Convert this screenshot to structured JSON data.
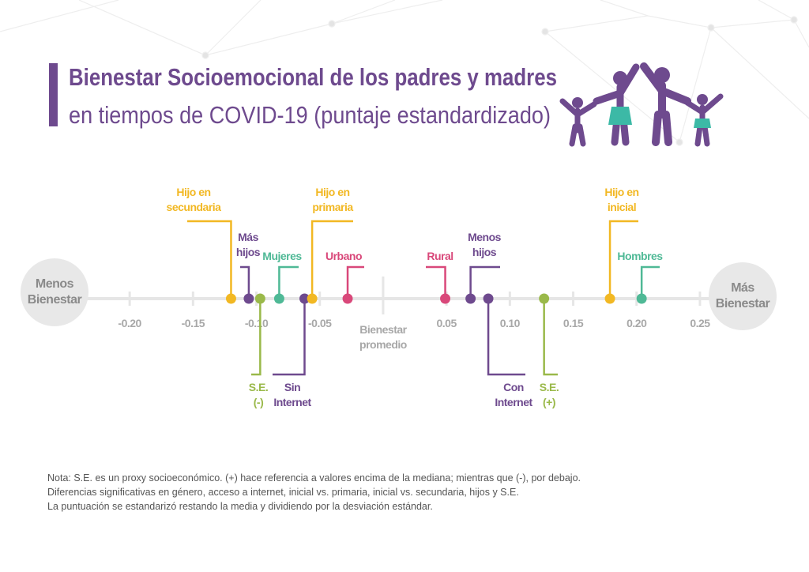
{
  "chart_data": {
    "type": "dotline",
    "title": "Bienestar Socioemocional de los padres y madres",
    "subtitle": "en tiempos de COVID-19 (puntaje estandardizado)",
    "left_label": "Menos Bienestar",
    "right_label": "Más Bienestar",
    "xlim": [
      -0.235,
      0.265
    ],
    "xticks": [
      {
        "value": -0.2,
        "label": "-0.20"
      },
      {
        "value": -0.15,
        "label": "-0.15"
      },
      {
        "value": -0.1,
        "label": "-0.10"
      },
      {
        "value": -0.05,
        "label": "-0.05"
      },
      {
        "value": 0,
        "label": "Bienestar promedio"
      },
      {
        "value": 0.05,
        "label": "0.05"
      },
      {
        "value": 0.1,
        "label": "0.10"
      },
      {
        "value": 0.15,
        "label": "0.15"
      },
      {
        "value": 0.2,
        "label": "0.20"
      },
      {
        "value": 0.25,
        "label": "0.25"
      }
    ],
    "points": [
      {
        "name": "Hijo en secundaria",
        "color": "#f2b823",
        "value": -0.12
      },
      {
        "name": "Más hijos",
        "color": "#6e4a8e",
        "value": -0.106
      },
      {
        "name": "S.E. (-)",
        "color": "#9ab94a",
        "value": -0.097
      },
      {
        "name": "Mujeres",
        "color": "#4fb996",
        "value": -0.082
      },
      {
        "name": "Sin Internet",
        "color": "#6e4a8e",
        "value": -0.062
      },
      {
        "name": "Hijo en primaria",
        "color": "#f2b823",
        "value": -0.056
      },
      {
        "name": "Urbano",
        "color": "#d9487a",
        "value": -0.028
      },
      {
        "name": "Rural",
        "color": "#d9487a",
        "value": 0.049
      },
      {
        "name": "Menos hijos",
        "color": "#6e4a8e",
        "value": 0.069
      },
      {
        "name": "Con Internet",
        "color": "#6e4a8e",
        "value": 0.083
      },
      {
        "name": "S.E. (+)",
        "color": "#9ab94a",
        "value": 0.127
      },
      {
        "name": "Hijo en inicial",
        "color": "#f2b823",
        "value": 0.179
      },
      {
        "name": "Hombres",
        "color": "#4fb996",
        "value": 0.204
      }
    ],
    "notes": [
      "Nota: S.E. es un proxy socioeconómico. (+) hace referencia a valores encima de la mediana; mientras que (-), por debajo.",
      "Diferencias significativas en género, acceso a internet, inicial vs. primaria, inicial vs. secundaria, hijos y S.E.",
      "La puntuación se estandarizó restando la media y dividiendo por la desviación estándar."
    ]
  }
}
